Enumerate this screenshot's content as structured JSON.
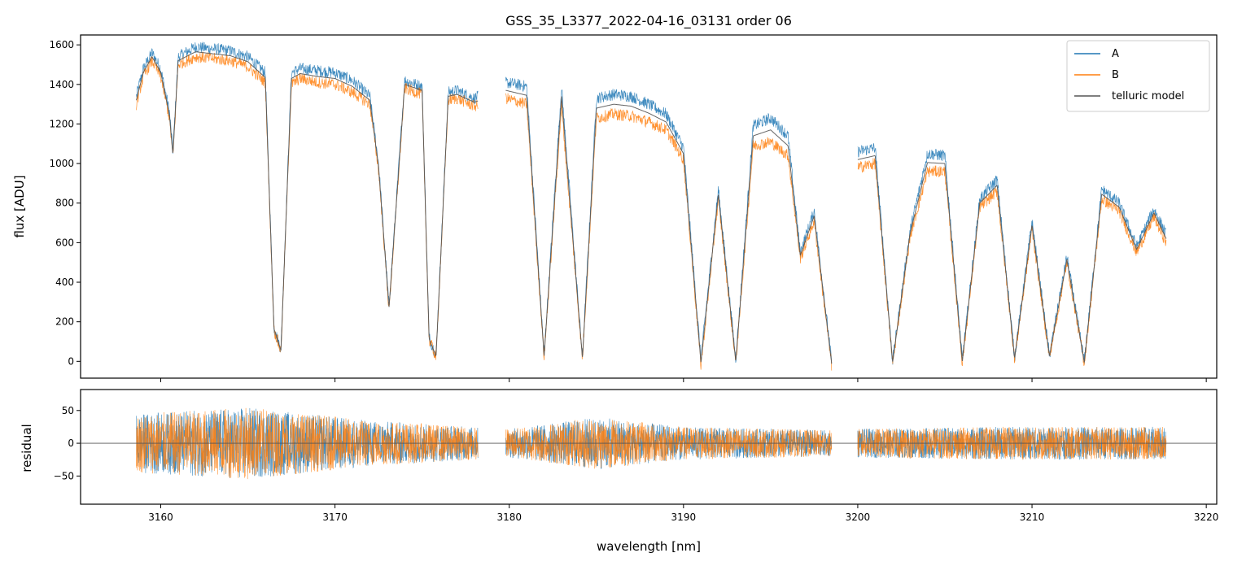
{
  "chart_data": [
    {
      "panel": "spectrum",
      "type": "line",
      "title": "GSS_35_L3377_2022-04-16_03131  order 06",
      "xlabel": "",
      "ylabel": "flux [ADU]",
      "xlim": [
        3155.4,
        3220.6
      ],
      "ylim": [
        -85,
        1650
      ],
      "yticks": [
        0,
        200,
        400,
        600,
        800,
        1000,
        1200,
        1400,
        1600
      ],
      "xticks": [
        3160,
        3170,
        3180,
        3190,
        3200,
        3210,
        3220
      ],
      "grid": false,
      "legend_position": "top-right",
      "colors": {
        "A": "#1f77b4",
        "B": "#ff7f0e",
        "telluric model": "#555555"
      },
      "segments": [
        {
          "x_range": [
            3158.6,
            3178.2
          ]
        },
        {
          "x_range": [
            3179.8,
            3198.5
          ]
        },
        {
          "x_range": [
            3200.0,
            3217.7
          ]
        }
      ],
      "series": [
        {
          "name": "A",
          "x": [
            3158.6,
            3159.0,
            3159.5,
            3160.0,
            3160.5,
            3160.7,
            3161.0,
            3162.0,
            3163.0,
            3164.0,
            3165.0,
            3166.0,
            3166.5,
            3166.9,
            3167.5,
            3168.0,
            3169.0,
            3170.0,
            3171.0,
            3172.0,
            3172.5,
            3173.1,
            3174.0,
            3175.0,
            3175.4,
            3175.8,
            3176.5,
            3177.0,
            3178.0,
            3179.8,
            3181.0,
            3182.0,
            3183.0,
            3184.2,
            3185.0,
            3186.0,
            3187.0,
            3188.0,
            3189.0,
            3190.0,
            3191.0,
            3192.0,
            3193.0,
            3194.0,
            3195.0,
            3196.0,
            3196.7,
            3197.5,
            3198.5,
            3200.0,
            3201.0,
            3202.0,
            3203.0,
            3204.0,
            3205.0,
            3206.0,
            3207.0,
            3208.0,
            3209.0,
            3210.0,
            3211.0,
            3212.0,
            3213.0,
            3214.0,
            3215.0,
            3216.0,
            3217.0,
            3217.7
          ],
          "y": [
            1340,
            1480,
            1560,
            1480,
            1260,
            1060,
            1540,
            1590,
            1580,
            1570,
            1540,
            1460,
            170,
            60,
            1460,
            1480,
            1470,
            1460,
            1420,
            1340,
            1000,
            280,
            1420,
            1390,
            120,
            30,
            1360,
            1370,
            1330,
            1410,
            1390,
            30,
            1390,
            20,
            1330,
            1350,
            1340,
            1300,
            1250,
            1080,
            10,
            870,
            10,
            1190,
            1230,
            1140,
            550,
            760,
            0,
            1060,
            1080,
            0,
            660,
            1050,
            1040,
            10,
            820,
            920,
            20,
            710,
            30,
            530,
            0,
            870,
            800,
            580,
            770,
            640
          ]
        },
        {
          "name": "B",
          "x": [
            3158.6,
            3159.0,
            3159.5,
            3160.0,
            3160.5,
            3160.7,
            3161.0,
            3162.0,
            3163.0,
            3164.0,
            3165.0,
            3166.0,
            3166.5,
            3166.9,
            3167.5,
            3168.0,
            3169.0,
            3170.0,
            3171.0,
            3172.0,
            3172.5,
            3173.1,
            3174.0,
            3175.0,
            3175.4,
            3175.8,
            3176.5,
            3177.0,
            3178.0,
            3179.8,
            3181.0,
            3182.0,
            3183.0,
            3184.2,
            3185.0,
            3186.0,
            3187.0,
            3188.0,
            3189.0,
            3190.0,
            3191.0,
            3192.0,
            3193.0,
            3194.0,
            3195.0,
            3196.0,
            3196.7,
            3197.5,
            3198.5,
            3200.0,
            3201.0,
            3202.0,
            3203.0,
            3204.0,
            3205.0,
            3206.0,
            3207.0,
            3208.0,
            3209.0,
            3210.0,
            3211.0,
            3212.0,
            3213.0,
            3214.0,
            3215.0,
            3216.0,
            3217.0,
            3217.7
          ],
          "y": [
            1300,
            1440,
            1520,
            1440,
            1230,
            1030,
            1500,
            1540,
            1530,
            1520,
            1490,
            1410,
            160,
            50,
            1400,
            1430,
            1410,
            1400,
            1360,
            1300,
            970,
            260,
            1380,
            1350,
            110,
            20,
            1320,
            1330,
            1290,
            1330,
            1300,
            20,
            1290,
            10,
            1230,
            1250,
            1240,
            1210,
            1170,
            1020,
            -20,
            820,
            -10,
            1090,
            1110,
            1040,
            520,
            710,
            -20,
            980,
            1000,
            -10,
            630,
            960,
            960,
            -10,
            780,
            860,
            10,
            670,
            20,
            500,
            -10,
            820,
            760,
            550,
            730,
            600
          ]
        },
        {
          "name": "telluric model",
          "x": [
            3158.6,
            3159.0,
            3159.5,
            3160.0,
            3160.5,
            3160.7,
            3161.0,
            3162.0,
            3163.0,
            3164.0,
            3165.0,
            3166.0,
            3166.5,
            3166.9,
            3167.5,
            3168.0,
            3169.0,
            3170.0,
            3171.0,
            3172.0,
            3172.5,
            3173.1,
            3174.0,
            3175.0,
            3175.4,
            3175.8,
            3176.5,
            3177.0,
            3178.0,
            3179.8,
            3181.0,
            3182.0,
            3183.0,
            3184.2,
            3185.0,
            3186.0,
            3187.0,
            3188.0,
            3189.0,
            3190.0,
            3191.0,
            3192.0,
            3193.0,
            3194.0,
            3195.0,
            3196.0,
            3196.7,
            3197.5,
            3198.5,
            3200.0,
            3201.0,
            3202.0,
            3203.0,
            3204.0,
            3205.0,
            3206.0,
            3207.0,
            3208.0,
            3209.0,
            3210.0,
            3211.0,
            3212.0,
            3213.0,
            3214.0,
            3215.0,
            3216.0,
            3217.0,
            3217.7
          ],
          "y": [
            1320,
            1460,
            1540,
            1460,
            1245,
            1045,
            1520,
            1565,
            1555,
            1545,
            1515,
            1435,
            165,
            55,
            1430,
            1455,
            1440,
            1430,
            1390,
            1320,
            985,
            270,
            1400,
            1370,
            115,
            25,
            1340,
            1350,
            1310,
            1370,
            1345,
            25,
            1340,
            15,
            1280,
            1300,
            1290,
            1255,
            1210,
            1050,
            -5,
            845,
            0,
            1140,
            1170,
            1090,
            535,
            735,
            -10,
            1020,
            1040,
            -5,
            645,
            1005,
            1000,
            0,
            800,
            890,
            15,
            690,
            25,
            515,
            -5,
            845,
            780,
            565,
            750,
            620
          ]
        }
      ]
    },
    {
      "panel": "residual",
      "type": "line",
      "xlabel": "wavelength [nm]",
      "ylabel": "residual",
      "xlim": [
        3155.4,
        3220.6
      ],
      "ylim": [
        -93,
        82
      ],
      "yticks": [
        -50,
        0,
        50
      ],
      "xticks": [
        3160,
        3170,
        3180,
        3190,
        3200,
        3210,
        3220
      ],
      "zero_line": 0,
      "grid": false,
      "colors": {
        "A": "#1f77b4",
        "B": "#ff7f0e"
      },
      "segments": [
        {
          "x_range": [
            3158.6,
            3178.2
          ]
        },
        {
          "x_range": [
            3179.8,
            3198.5
          ]
        },
        {
          "x_range": [
            3200.0,
            3217.7
          ]
        }
      ],
      "noise_amplitude": [
        {
          "x": 3158.6,
          "amp": 45
        },
        {
          "x": 3165.0,
          "amp": 55
        },
        {
          "x": 3172.0,
          "amp": 35
        },
        {
          "x": 3178.0,
          "amp": 25
        },
        {
          "x": 3180.0,
          "amp": 22
        },
        {
          "x": 3185.0,
          "amp": 40
        },
        {
          "x": 3190.0,
          "amp": 25
        },
        {
          "x": 3198.5,
          "amp": 20
        },
        {
          "x": 3200.0,
          "amp": 22
        },
        {
          "x": 3208.0,
          "amp": 25
        },
        {
          "x": 3217.7,
          "amp": 25
        }
      ]
    }
  ],
  "xtick_labels": [
    "3160",
    "3170",
    "3180",
    "3190",
    "3200",
    "3210",
    "3220"
  ],
  "legend": {
    "entries": [
      "A",
      "B",
      "telluric model"
    ]
  }
}
